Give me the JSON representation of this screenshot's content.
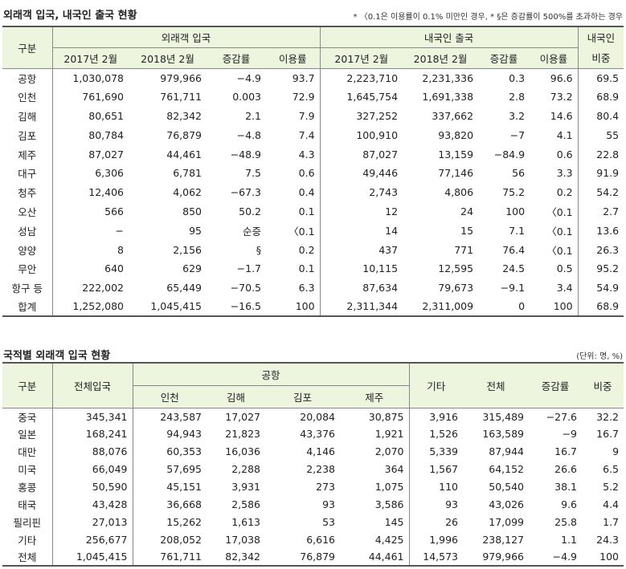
{
  "section1": {
    "title": "외래객 입국, 내국인 출국 현황",
    "note": "* 〈0.1은 이용률이 0.1% 미만인 경우, * §은 증감률이 500%를 초과하는 경우",
    "headers": {
      "gubun": "구분",
      "foreign_group": "외래객 입국",
      "domestic_group": "내국인 출국",
      "domestic_share_line1": "내국인",
      "domestic_share_line2": "비중",
      "sub": [
        "2017년 2월",
        "2018년 2월",
        "증감률",
        "이용률",
        "2017년 2월",
        "2018년 2월",
        "증감률",
        "이용률"
      ]
    },
    "rows": [
      [
        "공항",
        "1,030,078",
        "979,966",
        "−4.9",
        "93.7",
        "2,223,710",
        "2,231,336",
        "0.3",
        "96.6",
        "69.5"
      ],
      [
        "인천",
        "761,690",
        "761,711",
        "0.003",
        "72.9",
        "1,645,754",
        "1,691,338",
        "2.8",
        "73.2",
        "68.9"
      ],
      [
        "김해",
        "80,651",
        "82,342",
        "2.1",
        "7.9",
        "327,252",
        "337,662",
        "3.2",
        "14.6",
        "80.4"
      ],
      [
        "김포",
        "80,784",
        "76,879",
        "−4.8",
        "7.4",
        "100,910",
        "93,820",
        "−7",
        "4.1",
        "55"
      ],
      [
        "제주",
        "87,027",
        "44,461",
        "−48.9",
        "4.3",
        "87,027",
        "13,159",
        "−84.9",
        "0.6",
        "22.8"
      ],
      [
        "대구",
        "6,306",
        "6,781",
        "7.5",
        "0.6",
        "49,446",
        "77,146",
        "56",
        "3.3",
        "91.9"
      ],
      [
        "청주",
        "12,406",
        "4,062",
        "−67.3",
        "0.4",
        "2,743",
        "4,806",
        "75.2",
        "0.2",
        "54.2"
      ],
      [
        "오산",
        "566",
        "850",
        "50.2",
        "0.1",
        "12",
        "24",
        "100",
        "〈0.1",
        "2.7"
      ],
      [
        "성남",
        "−",
        "95",
        "순증",
        "〈0.1",
        "14",
        "15",
        "7.1",
        "〈0.1",
        "13.6"
      ],
      [
        "양양",
        "8",
        "2,156",
        "§",
        "0.2",
        "437",
        "771",
        "76.4",
        "〈0.1",
        "26.3"
      ],
      [
        "무안",
        "640",
        "629",
        "−1.7",
        "0.1",
        "10,115",
        "12,595",
        "24.5",
        "0.5",
        "95.2"
      ],
      [
        "항구 등",
        "222,002",
        "65,449",
        "−70.5",
        "6.3",
        "87,634",
        "79,673",
        "−9.1",
        "3.4",
        "54.9"
      ],
      [
        "합계",
        "1,252,080",
        "1,045,415",
        "−16.5",
        "100",
        "2,311,344",
        "2,311,009",
        "0",
        "100",
        "68.9"
      ]
    ]
  },
  "section2": {
    "title": "국적별 외래객 입국 현황",
    "unit": "(단위: 명, %)",
    "headers": {
      "gubun": "구분",
      "total_entry": "전체입국",
      "airport_group": "공항",
      "airport_sub": [
        "인천",
        "김해",
        "김포",
        "제주"
      ],
      "other": "기타",
      "total": "전체",
      "change": "증감률",
      "share": "비중"
    },
    "rows": [
      [
        "중국",
        "345,341",
        "243,587",
        "17,027",
        "20,084",
        "30,875",
        "3,916",
        "315,489",
        "−27.6",
        "32.2"
      ],
      [
        "일본",
        "168,241",
        "94,943",
        "21,823",
        "43,376",
        "1,921",
        "1,526",
        "163,589",
        "−9",
        "16.7"
      ],
      [
        "대만",
        "88,076",
        "60,353",
        "16,036",
        "4,146",
        "2,070",
        "5,339",
        "87,944",
        "16.7",
        "9"
      ],
      [
        "미국",
        "66,049",
        "57,695",
        "2,288",
        "2,238",
        "364",
        "1,567",
        "64,152",
        "26.6",
        "6.5"
      ],
      [
        "홍콩",
        "50,590",
        "45,151",
        "3,931",
        "273",
        "1,075",
        "110",
        "50,540",
        "38.1",
        "5.2"
      ],
      [
        "태국",
        "43,428",
        "36,668",
        "2,586",
        "93",
        "3,586",
        "93",
        "43,026",
        "9.6",
        "4.4"
      ],
      [
        "필리핀",
        "27,013",
        "15,262",
        "1,613",
        "53",
        "145",
        "26",
        "17,099",
        "25.8",
        "1.7"
      ],
      [
        "기타",
        "256,677",
        "208,052",
        "17,038",
        "6,616",
        "4,425",
        "1,996",
        "238,127",
        "1.1",
        "24.3"
      ],
      [
        "전체",
        "1,045,415",
        "761,711",
        "82,342",
        "76,879",
        "44,461",
        "14,573",
        "979,966",
        "−4.9",
        "100"
      ]
    ]
  }
}
